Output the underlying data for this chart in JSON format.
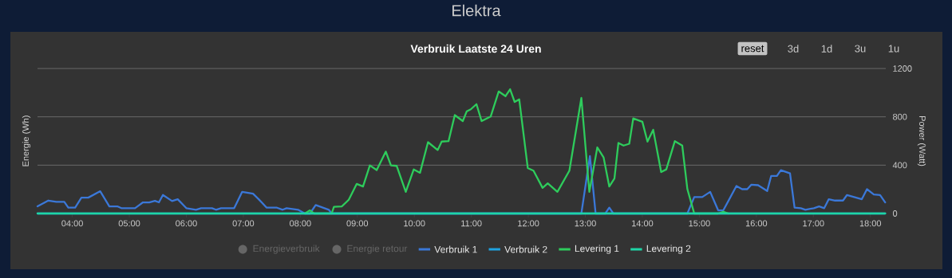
{
  "chart_data": {
    "type": "line",
    "title": "Elektra",
    "subtitle": "Verbruik Laatste 24 Uren",
    "ylabel": "Energie (Wh)",
    "y2label": "Power (Watt)",
    "annotations": [
      "reset",
      "3d",
      "1d",
      "3u",
      "1u"
    ],
    "xlim": [
      3.39,
      18.27
    ],
    "xticks": [
      {
        "value": 4,
        "label": "04:00"
      },
      {
        "value": 5,
        "label": "05:00"
      },
      {
        "value": 6,
        "label": "06:00"
      },
      {
        "value": 7,
        "label": "07:00"
      },
      {
        "value": 8,
        "label": "08:00"
      },
      {
        "value": 9,
        "label": "09:00"
      },
      {
        "value": 10,
        "label": "10:00"
      },
      {
        "value": 11,
        "label": "11:00"
      },
      {
        "value": 12,
        "label": "12:00"
      },
      {
        "value": 13,
        "label": "13:00"
      },
      {
        "value": 14,
        "label": "14:00"
      },
      {
        "value": 15,
        "label": "15:00"
      },
      {
        "value": 16,
        "label": "16:00"
      },
      {
        "value": 17,
        "label": "17:00"
      },
      {
        "value": 18,
        "label": "18:00"
      }
    ],
    "y2lim": [
      0,
      1200
    ],
    "y2ticks": [
      0,
      400,
      800,
      1200
    ],
    "grid": "y",
    "legend": "bottom",
    "series": [
      {
        "name": "Energieverbruik",
        "color": "#666666"
      },
      {
        "name": "Energie retour",
        "color": "#666666"
      },
      {
        "name": "Verbruik 1",
        "color": "#3b78d8",
        "axis": "y2",
        "x": [
          3.39,
          3.58,
          3.72,
          3.86,
          3.93,
          4.05,
          4.16,
          4.28,
          4.49,
          4.65,
          4.79,
          4.86,
          5.1,
          5.24,
          5.35,
          5.45,
          5.52,
          5.59,
          5.75,
          5.85,
          6.0,
          6.17,
          6.26,
          6.45,
          6.52,
          6.61,
          6.84,
          6.98,
          7.17,
          7.27,
          7.41,
          7.59,
          7.69,
          7.76,
          7.96,
          8.08,
          8.17,
          8.27,
          8.5,
          8.55,
          12.93,
          13.08,
          13.18,
          13.35,
          13.42,
          13.49,
          14.79,
          14.91,
          15.05,
          15.19,
          15.33,
          15.42,
          15.65,
          15.75,
          15.84,
          15.91,
          16.03,
          16.19,
          16.26,
          16.36,
          16.43,
          16.59,
          16.67,
          16.78,
          16.86,
          17.01,
          17.1,
          17.19,
          17.27,
          17.38,
          17.52,
          17.59,
          17.85,
          17.94,
          18.06,
          18.17,
          18.26
        ],
        "values": [
          59,
          107,
          96,
          96,
          48,
          48,
          131,
          131,
          184,
          59,
          59,
          44,
          44,
          92,
          92,
          105,
          92,
          153,
          103,
          118,
          44,
          31,
          44,
          44,
          31,
          44,
          44,
          179,
          164,
          118,
          48,
          48,
          31,
          44,
          31,
          0,
          0,
          70,
          31,
          0,
          0,
          475,
          0,
          0,
          48,
          0,
          0,
          136,
          136,
          179,
          26,
          26,
          227,
          201,
          201,
          238,
          234,
          186,
          311,
          311,
          359,
          332,
          48,
          44,
          31,
          44,
          59,
          44,
          118,
          107,
          107,
          153,
          118,
          201,
          157,
          153,
          92
        ]
      },
      {
        "name": "Verbruik 2",
        "color": "#1fa3e0",
        "axis": "y2",
        "x": [
          3.39,
          18.26
        ],
        "values": [
          0,
          0
        ]
      },
      {
        "name": "Levering 1",
        "color": "#2ecc5c",
        "axis": "y2",
        "x": [
          8.08,
          8.17,
          8.24,
          8.55,
          8.59,
          8.73,
          8.85,
          8.99,
          9.1,
          9.22,
          9.34,
          9.5,
          9.59,
          9.69,
          9.85,
          9.99,
          10.1,
          10.24,
          10.41,
          10.48,
          10.6,
          10.71,
          10.85,
          10.92,
          10.99,
          11.09,
          11.18,
          11.34,
          11.48,
          11.6,
          11.68,
          11.76,
          11.84,
          11.99,
          12.09,
          12.25,
          12.34,
          12.51,
          12.72,
          12.93,
          13.07,
          13.21,
          13.32,
          13.42,
          13.51,
          13.58,
          13.67,
          13.77,
          13.84,
          14.0,
          14.09,
          14.19,
          14.33,
          14.42,
          14.57,
          14.7,
          14.79,
          14.91,
          15.33,
          15.42,
          15.51
        ],
        "values": [
          0,
          26,
          0,
          0,
          55,
          59,
          114,
          245,
          223,
          398,
          359,
          512,
          398,
          394,
          179,
          365,
          337,
          590,
          525,
          595,
          599,
          814,
          765,
          846,
          862,
          905,
          765,
          803,
          1010,
          971,
          1028,
          923,
          945,
          376,
          354,
          212,
          249,
          179,
          354,
          956,
          179,
          547,
          464,
          223,
          289,
          584,
          562,
          577,
          787,
          759,
          595,
          693,
          343,
          365,
          599,
          562,
          201,
          0,
          0,
          15,
          0
        ]
      },
      {
        "name": "Levering 2",
        "color": "#1ed6a6",
        "axis": "y2",
        "x": [
          3.39,
          18.26
        ],
        "values": [
          0,
          0
        ]
      }
    ]
  }
}
